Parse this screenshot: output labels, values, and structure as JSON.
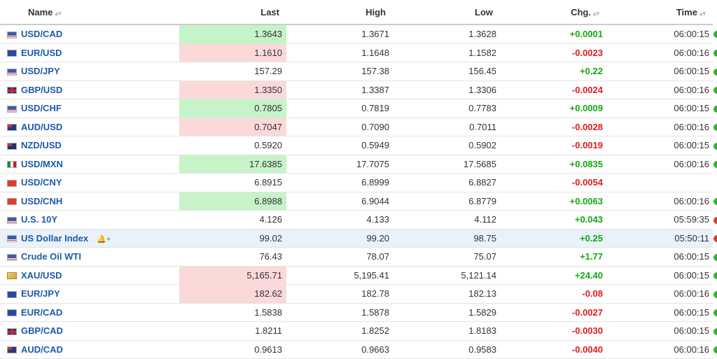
{
  "headers": {
    "name": "Name",
    "last": "Last",
    "high": "High",
    "low": "Low",
    "chg": "Chg.",
    "time": "Time"
  },
  "rows": [
    {
      "flag": "us",
      "name": "USD/CAD",
      "last": "1.3643",
      "last_state": "up",
      "high": "1.3671",
      "low": "1.3628",
      "chg": "+0.0001",
      "time": "06:00:15",
      "status": "green"
    },
    {
      "flag": "eu",
      "name": "EUR/USD",
      "last": "1.1610",
      "last_state": "down",
      "high": "1.1648",
      "low": "1.1582",
      "chg": "-0.0023",
      "time": "06:00:16",
      "status": "green"
    },
    {
      "flag": "us",
      "name": "USD/JPY",
      "last": "157.29",
      "last_state": "none",
      "high": "157.38",
      "low": "156.45",
      "chg": "+0.22",
      "time": "06:00:15",
      "status": "green"
    },
    {
      "flag": "gb",
      "name": "GBP/USD",
      "last": "1.3350",
      "last_state": "down",
      "high": "1.3387",
      "low": "1.3306",
      "chg": "-0.0024",
      "time": "06:00:16",
      "status": "green"
    },
    {
      "flag": "us",
      "name": "USD/CHF",
      "last": "0.7805",
      "last_state": "up",
      "high": "0.7819",
      "low": "0.7783",
      "chg": "+0.0009",
      "time": "06:00:15",
      "status": "green"
    },
    {
      "flag": "au",
      "name": "AUD/USD",
      "last": "0.7047",
      "last_state": "down",
      "high": "0.7090",
      "low": "0.7011",
      "chg": "-0.0028",
      "time": "06:00:16",
      "status": "green"
    },
    {
      "flag": "nz",
      "name": "NZD/USD",
      "last": "0.5920",
      "last_state": "none",
      "high": "0.5949",
      "low": "0.5902",
      "chg": "-0.0019",
      "time": "06:00:15",
      "status": "green"
    },
    {
      "flag": "mx",
      "name": "USD/MXN",
      "last": "17.6385",
      "last_state": "up",
      "high": "17.7075",
      "low": "17.5685",
      "chg": "+0.0835",
      "time": "06:00:16",
      "status": "green"
    },
    {
      "flag": "cn",
      "name": "USD/CNY",
      "last": "6.8915",
      "last_state": "none",
      "high": "6.8999",
      "low": "6.8827",
      "chg": "-0.0054",
      "time": "",
      "status": "none"
    },
    {
      "flag": "cn",
      "name": "USD/CNH",
      "last": "6.8988",
      "last_state": "up",
      "high": "6.9044",
      "low": "6.8779",
      "chg": "+0.0063",
      "time": "06:00:16",
      "status": "green"
    },
    {
      "flag": "us",
      "name": "U.S. 10Y",
      "last": "4.126",
      "last_state": "none",
      "high": "4.133",
      "low": "4.112",
      "chg": "+0.043",
      "time": "05:59:35",
      "status": "red"
    },
    {
      "flag": "us",
      "name": "US Dollar Index",
      "last": "99.02",
      "last_state": "none",
      "high": "99.20",
      "low": "98.75",
      "chg": "+0.25",
      "time": "05:50:11",
      "status": "red",
      "highlight": true,
      "bell": true
    },
    {
      "flag": "us",
      "name": "Crude Oil WTI",
      "last": "76.43",
      "last_state": "none",
      "high": "78.07",
      "low": "75.07",
      "chg": "+1.77",
      "time": "06:00:15",
      "status": "green"
    },
    {
      "flag": "gold",
      "name": "XAU/USD",
      "last": "5,165.71",
      "last_state": "down",
      "high": "5,195.41",
      "low": "5,121.14",
      "chg": "+24.40",
      "time": "06:00:15",
      "status": "green"
    },
    {
      "flag": "eu",
      "name": "EUR/JPY",
      "last": "182.62",
      "last_state": "down",
      "high": "182.78",
      "low": "182.13",
      "chg": "-0.08",
      "time": "06:00:16",
      "status": "green"
    },
    {
      "flag": "eu",
      "name": "EUR/CAD",
      "last": "1.5838",
      "last_state": "none",
      "high": "1.5878",
      "low": "1.5829",
      "chg": "-0.0027",
      "time": "06:00:15",
      "status": "green"
    },
    {
      "flag": "gb",
      "name": "GBP/CAD",
      "last": "1.8211",
      "last_state": "none",
      "high": "1.8252",
      "low": "1.8183",
      "chg": "-0.0030",
      "time": "06:00:15",
      "status": "green"
    },
    {
      "flag": "au",
      "name": "AUD/CAD",
      "last": "0.9613",
      "last_state": "none",
      "high": "0.9663",
      "low": "0.9583",
      "chg": "-0.0040",
      "time": "06:00:16",
      "status": "green"
    }
  ],
  "colors": {
    "positive": "#11a911",
    "negative": "#e01b1b",
    "up_bg": "#c6f3c8",
    "down_bg": "#fbd9d9",
    "link": "#1c5ba8",
    "status_green": "#2bb52b",
    "status_red": "#e23b2b"
  }
}
